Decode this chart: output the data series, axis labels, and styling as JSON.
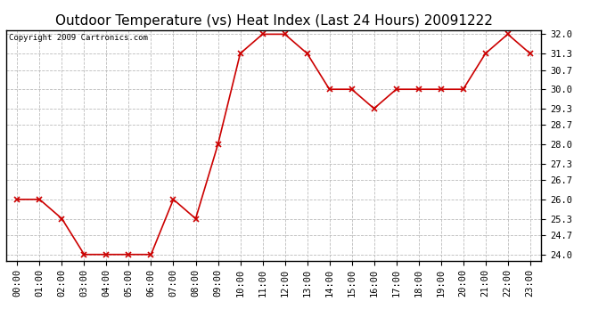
{
  "title": "Outdoor Temperature (vs) Heat Index (Last 24 Hours) 20091222",
  "copyright_text": "Copyright 2009 Cartronics.com",
  "x_labels": [
    "00:00",
    "01:00",
    "02:00",
    "03:00",
    "04:00",
    "05:00",
    "06:00",
    "07:00",
    "08:00",
    "09:00",
    "10:00",
    "11:00",
    "12:00",
    "13:00",
    "14:00",
    "15:00",
    "16:00",
    "17:00",
    "18:00",
    "19:00",
    "20:00",
    "21:00",
    "22:00",
    "23:00"
  ],
  "y_values": [
    26.0,
    26.0,
    25.3,
    24.0,
    24.0,
    24.0,
    24.0,
    26.0,
    25.3,
    28.0,
    31.3,
    32.0,
    32.0,
    31.3,
    30.0,
    30.0,
    29.3,
    30.0,
    30.0,
    30.0,
    30.0,
    31.3,
    32.0,
    31.3
  ],
  "y_ticks": [
    24.0,
    24.7,
    25.3,
    26.0,
    26.7,
    27.3,
    28.0,
    28.7,
    29.3,
    30.0,
    30.7,
    31.3,
    32.0
  ],
  "ylim": [
    23.78,
    32.15
  ],
  "line_color": "#cc0000",
  "marker": "x",
  "marker_color": "#cc0000",
  "grid_color": "#bbbbbb",
  "background_color": "#ffffff",
  "title_fontsize": 11,
  "copyright_fontsize": 6.5,
  "tick_fontsize": 7.5,
  "figwidth": 6.9,
  "figheight": 3.75,
  "dpi": 100
}
